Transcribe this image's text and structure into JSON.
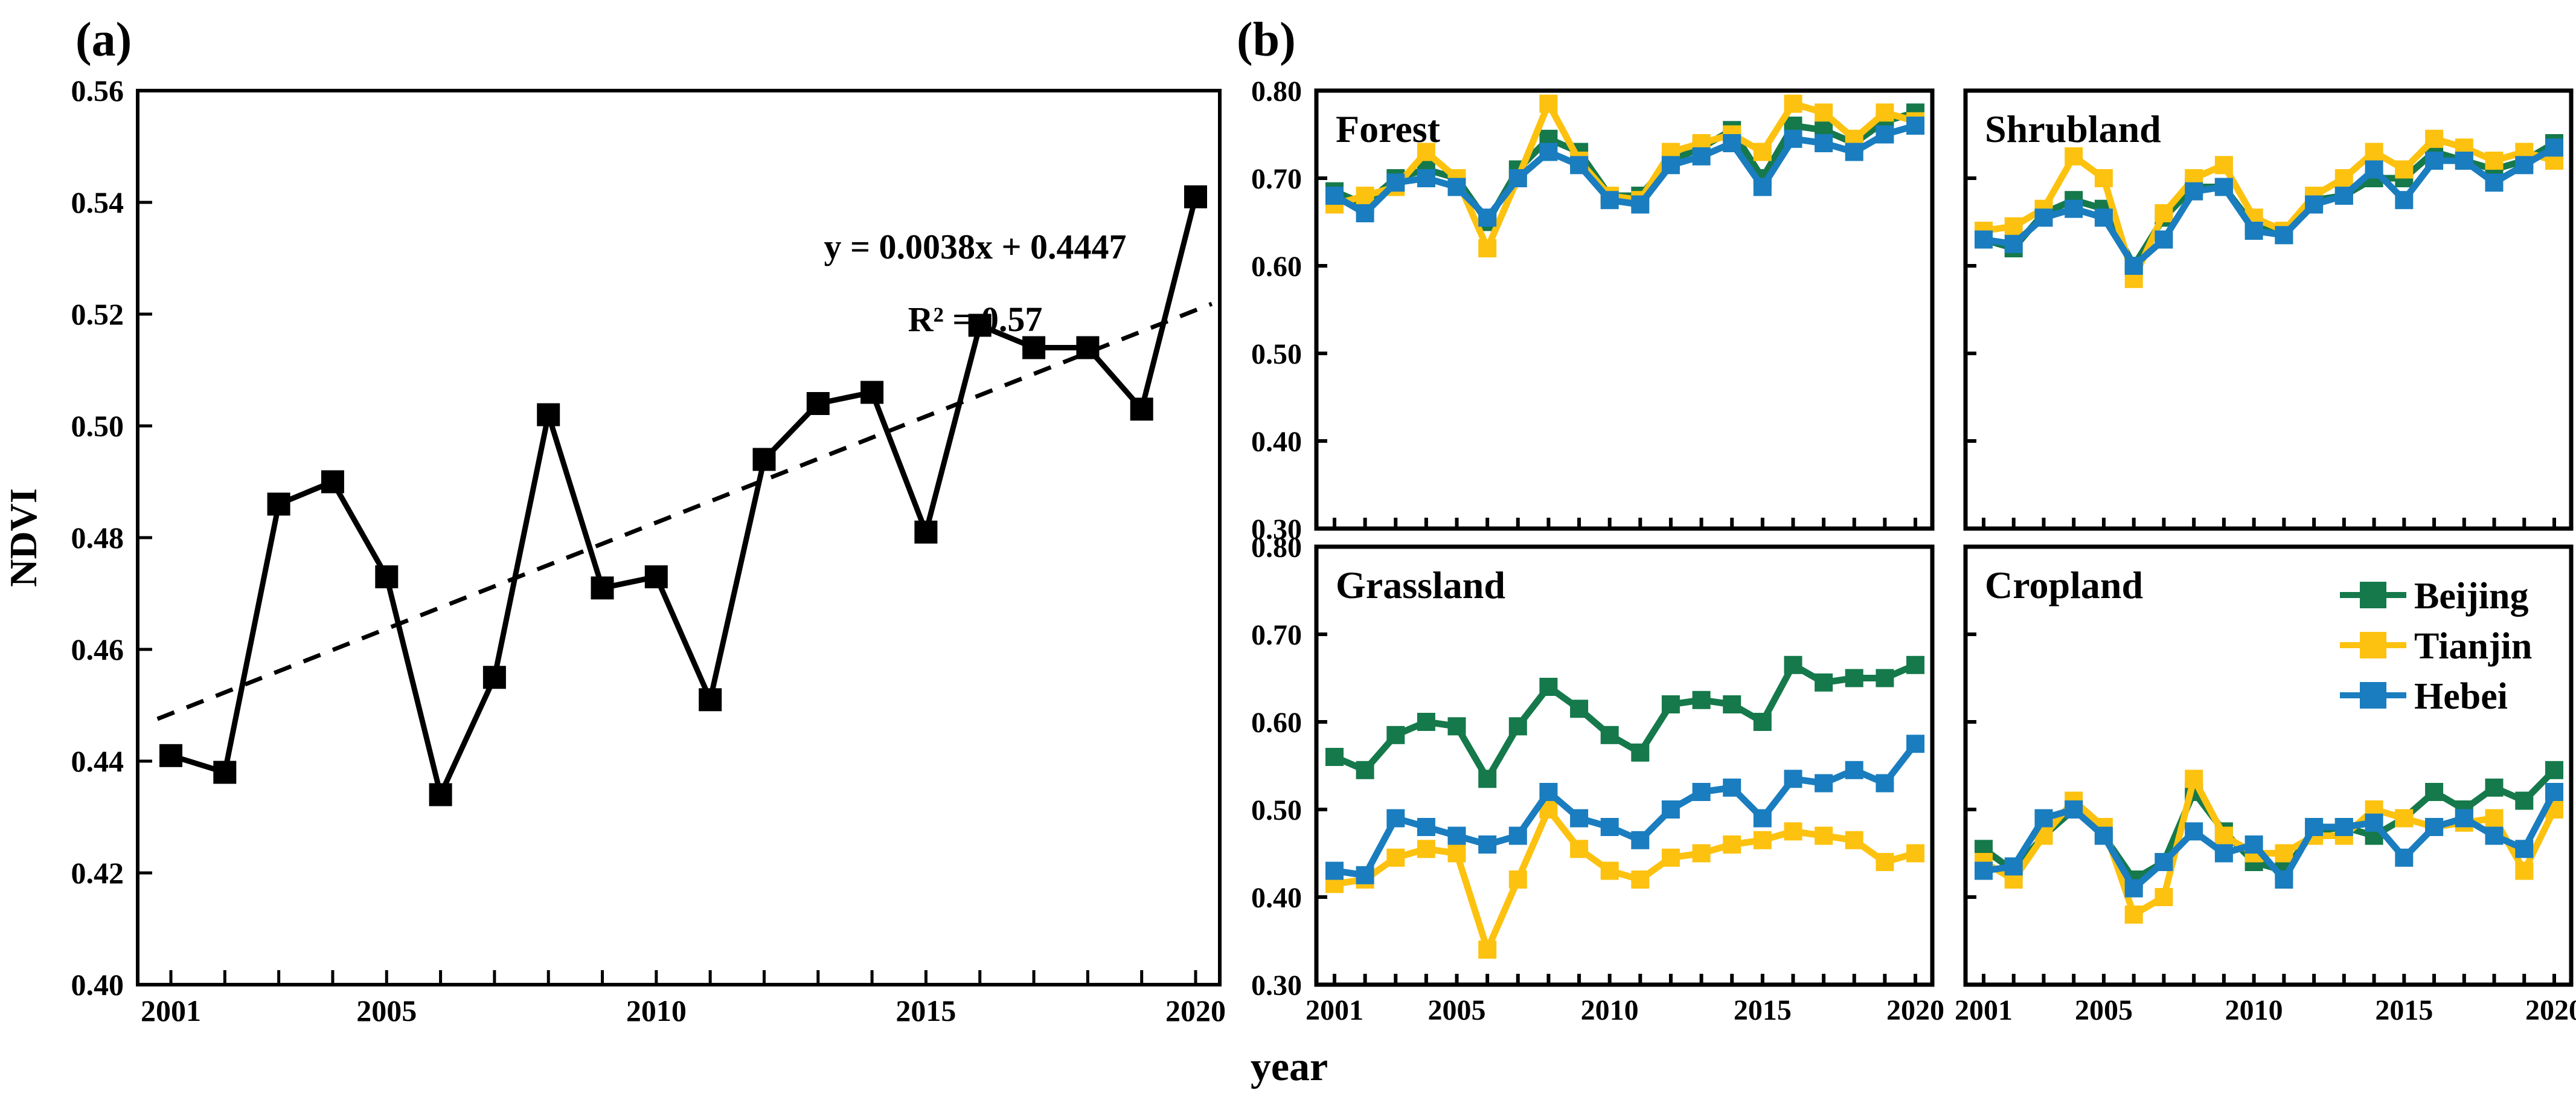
{
  "figure": {
    "panel_a_label": "(a)",
    "panel_b_label": "(b)",
    "x_axis_title": "year",
    "y_axis_title_a": "NDVI"
  },
  "colors": {
    "beijing": "#15794B",
    "tianjin": "#FDC20F",
    "hebei": "#1A7DBF",
    "ndvi_line": "#000000",
    "trend_line": "#000000"
  },
  "annotation": {
    "line1": "y = 0.0038x + 0.4447",
    "line2": "R² = 0.57"
  },
  "legend": {
    "position": "cropland-top-right",
    "items": [
      {
        "label": "Beijing",
        "color": "#15794B"
      },
      {
        "label": "Tianjin",
        "color": "#FDC20F"
      },
      {
        "label": "Hebei",
        "color": "#1A7DBF"
      }
    ]
  },
  "chart_data": [
    {
      "id": "ndvi-annual",
      "type": "line",
      "title": "(a)",
      "xlabel": "year",
      "ylabel": "NDVI",
      "x": [
        2001,
        2002,
        2003,
        2004,
        2005,
        2006,
        2007,
        2008,
        2009,
        2010,
        2011,
        2012,
        2013,
        2014,
        2015,
        2016,
        2017,
        2018,
        2019,
        2020
      ],
      "series": [
        {
          "name": "NDVI",
          "color": "#000000",
          "values": [
            0.441,
            0.438,
            0.486,
            0.49,
            0.473,
            0.434,
            0.455,
            0.502,
            0.471,
            0.473,
            0.451,
            0.494,
            0.504,
            0.506,
            0.481,
            0.518,
            0.514,
            0.514,
            0.503,
            0.541
          ]
        }
      ],
      "trendline": {
        "equation": "y = 0.0038x + 0.4447",
        "r_squared_label": "R² = 0.57",
        "slope_per_year": 0.0038,
        "intercept": 0.4447,
        "style": "dashed"
      },
      "ylim": [
        0.4,
        0.56
      ],
      "y_ticks": [
        "0.40",
        "0.42",
        "0.44",
        "0.46",
        "0.48",
        "0.50",
        "0.52",
        "0.54",
        "0.56"
      ],
      "x_ticks": [
        "2001",
        "2005",
        "2010",
        "2015",
        "2020"
      ],
      "grid": false,
      "legend_shown": false
    },
    {
      "id": "forest",
      "type": "line",
      "title": "Forest",
      "x": [
        2001,
        2002,
        2003,
        2004,
        2005,
        2006,
        2007,
        2008,
        2009,
        2010,
        2011,
        2012,
        2013,
        2014,
        2015,
        2016,
        2017,
        2018,
        2019,
        2020
      ],
      "series": [
        {
          "name": "Beijing",
          "color": "#15794B",
          "values": [
            0.685,
            0.67,
            0.7,
            0.71,
            0.7,
            0.65,
            0.71,
            0.745,
            0.73,
            0.68,
            0.68,
            0.72,
            0.735,
            0.755,
            0.7,
            0.76,
            0.755,
            0.74,
            0.765,
            0.775
          ]
        },
        {
          "name": "Tianjin",
          "color": "#FDC20F",
          "values": [
            0.67,
            0.68,
            0.69,
            0.73,
            0.7,
            0.62,
            0.7,
            0.785,
            0.72,
            0.68,
            0.675,
            0.73,
            0.74,
            0.75,
            0.73,
            0.785,
            0.775,
            0.745,
            0.775,
            0.765
          ]
        },
        {
          "name": "Hebei",
          "color": "#1A7DBF",
          "values": [
            0.68,
            0.66,
            0.695,
            0.7,
            0.69,
            0.655,
            0.7,
            0.73,
            0.715,
            0.675,
            0.67,
            0.715,
            0.725,
            0.74,
            0.69,
            0.745,
            0.74,
            0.73,
            0.75,
            0.76
          ]
        }
      ],
      "ylim": [
        0.3,
        0.8
      ],
      "y_ticks": [
        "0.30",
        "0.40",
        "0.50",
        "0.60",
        "0.70",
        "0.80"
      ],
      "x_ticks": [
        "2001",
        "2005",
        "2010",
        "2015",
        "2020"
      ],
      "grid": false,
      "legend_shown": false
    },
    {
      "id": "shrubland",
      "type": "line",
      "title": "Shrubland",
      "x": [
        2001,
        2002,
        2003,
        2004,
        2005,
        2006,
        2007,
        2008,
        2009,
        2010,
        2011,
        2012,
        2013,
        2014,
        2015,
        2016,
        2017,
        2018,
        2019,
        2020
      ],
      "series": [
        {
          "name": "Beijing",
          "color": "#15794B",
          "values": [
            0.63,
            0.62,
            0.66,
            0.675,
            0.665,
            0.6,
            0.655,
            0.69,
            0.69,
            0.645,
            0.635,
            0.675,
            0.68,
            0.7,
            0.7,
            0.73,
            0.72,
            0.71,
            0.72,
            0.74
          ]
        },
        {
          "name": "Tianjin",
          "color": "#FDC20F",
          "values": [
            0.64,
            0.645,
            0.665,
            0.725,
            0.7,
            0.585,
            0.66,
            0.7,
            0.715,
            0.655,
            0.64,
            0.68,
            0.7,
            0.73,
            0.71,
            0.745,
            0.735,
            0.72,
            0.73,
            0.72
          ]
        },
        {
          "name": "Hebei",
          "color": "#1A7DBF",
          "values": [
            0.63,
            0.625,
            0.655,
            0.665,
            0.655,
            0.6,
            0.63,
            0.685,
            0.69,
            0.64,
            0.635,
            0.67,
            0.68,
            0.71,
            0.675,
            0.72,
            0.72,
            0.695,
            0.715,
            0.735
          ]
        }
      ],
      "ylim": [
        0.3,
        0.8
      ],
      "y_ticks": [
        "0.30",
        "0.40",
        "0.50",
        "0.60",
        "0.70",
        "0.80"
      ],
      "x_ticks": [
        "2001",
        "2005",
        "2010",
        "2015",
        "2020"
      ],
      "grid": false,
      "legend_shown": false
    },
    {
      "id": "grassland",
      "type": "line",
      "title": "Grassland",
      "x": [
        2001,
        2002,
        2003,
        2004,
        2005,
        2006,
        2007,
        2008,
        2009,
        2010,
        2011,
        2012,
        2013,
        2014,
        2015,
        2016,
        2017,
        2018,
        2019,
        2020
      ],
      "series": [
        {
          "name": "Beijing",
          "color": "#15794B",
          "values": [
            0.56,
            0.545,
            0.585,
            0.6,
            0.595,
            0.535,
            0.595,
            0.64,
            0.615,
            0.585,
            0.565,
            0.62,
            0.625,
            0.62,
            0.6,
            0.665,
            0.645,
            0.65,
            0.65,
            0.665
          ]
        },
        {
          "name": "Tianjin",
          "color": "#FDC20F",
          "values": [
            0.415,
            0.42,
            0.445,
            0.455,
            0.45,
            0.34,
            0.42,
            0.5,
            0.455,
            0.43,
            0.42,
            0.445,
            0.45,
            0.46,
            0.465,
            0.475,
            0.47,
            0.465,
            0.44,
            0.45
          ]
        },
        {
          "name": "Hebei",
          "color": "#1A7DBF",
          "values": [
            0.43,
            0.425,
            0.49,
            0.48,
            0.47,
            0.46,
            0.47,
            0.52,
            0.49,
            0.48,
            0.465,
            0.5,
            0.52,
            0.525,
            0.49,
            0.535,
            0.53,
            0.545,
            0.53,
            0.575
          ]
        }
      ],
      "ylim": [
        0.3,
        0.8
      ],
      "y_ticks": [
        "0.30",
        "0.40",
        "0.50",
        "0.60",
        "0.70",
        "0.80"
      ],
      "x_ticks": [
        "2001",
        "2005",
        "2010",
        "2015",
        "2020"
      ],
      "grid": false,
      "legend_shown": false
    },
    {
      "id": "cropland",
      "type": "line",
      "title": "Cropland",
      "x": [
        2001,
        2002,
        2003,
        2004,
        2005,
        2006,
        2007,
        2008,
        2009,
        2010,
        2011,
        2012,
        2013,
        2014,
        2015,
        2016,
        2017,
        2018,
        2019,
        2020
      ],
      "series": [
        {
          "name": "Beijing",
          "color": "#15794B",
          "values": [
            0.455,
            0.43,
            0.47,
            0.5,
            0.47,
            0.42,
            0.44,
            0.52,
            0.475,
            0.44,
            0.43,
            0.475,
            0.48,
            0.47,
            0.49,
            0.52,
            0.5,
            0.525,
            0.51,
            0.545
          ]
        },
        {
          "name": "Tianjin",
          "color": "#FDC20F",
          "values": [
            0.44,
            0.42,
            0.47,
            0.51,
            0.48,
            0.38,
            0.4,
            0.535,
            0.47,
            0.45,
            0.45,
            0.47,
            0.47,
            0.5,
            0.49,
            0.48,
            0.485,
            0.49,
            0.43,
            0.5
          ]
        },
        {
          "name": "Hebei",
          "color": "#1A7DBF",
          "values": [
            0.43,
            0.435,
            0.49,
            0.5,
            0.47,
            0.41,
            0.44,
            0.475,
            0.45,
            0.46,
            0.42,
            0.48,
            0.48,
            0.485,
            0.445,
            0.48,
            0.49,
            0.47,
            0.455,
            0.52
          ]
        }
      ],
      "ylim": [
        0.3,
        0.8
      ],
      "y_ticks": [
        "0.30",
        "0.40",
        "0.50",
        "0.60",
        "0.70",
        "0.80"
      ],
      "x_ticks": [
        "2001",
        "2005",
        "2010",
        "2015",
        "2020"
      ],
      "grid": false,
      "legend_shown": true
    }
  ]
}
